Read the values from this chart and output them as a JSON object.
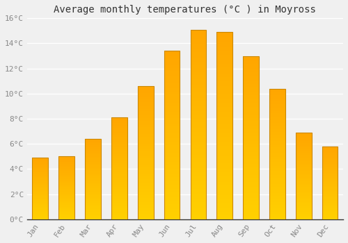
{
  "title": "Average monthly temperatures (°C ) in Moyross",
  "months": [
    "Jan",
    "Feb",
    "Mar",
    "Apr",
    "May",
    "Jun",
    "Jul",
    "Aug",
    "Sep",
    "Oct",
    "Nov",
    "Dec"
  ],
  "values": [
    4.9,
    5.0,
    6.4,
    8.1,
    10.6,
    13.4,
    15.1,
    14.9,
    13.0,
    10.4,
    6.9,
    5.8
  ],
  "bar_color_bottom": "#FFD000",
  "bar_color_top": "#FFA500",
  "bar_edge_color": "#CC8800",
  "ylim": [
    0,
    16
  ],
  "yticks": [
    0,
    2,
    4,
    6,
    8,
    10,
    12,
    14,
    16
  ],
  "ytick_labels": [
    "0°C",
    "2°C",
    "4°C",
    "6°C",
    "8°C",
    "10°C",
    "12°C",
    "14°C",
    "16°C"
  ],
  "background_color": "#f0f0f0",
  "grid_color": "#ffffff",
  "title_fontsize": 10,
  "tick_fontsize": 8,
  "bar_width": 0.6
}
